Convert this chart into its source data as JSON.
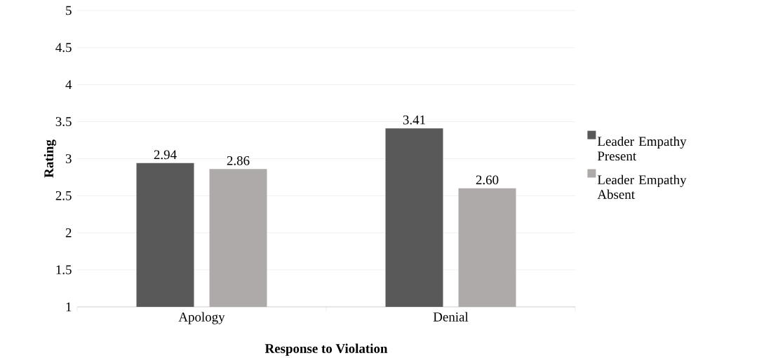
{
  "chart_data": {
    "type": "bar",
    "xlabel": "Response to Violation",
    "ylabel": "Rating",
    "categories": [
      "Apology",
      "Denial"
    ],
    "series": [
      {
        "name": "Leader Empathy Present",
        "color": "#595959",
        "values": [
          2.94,
          3.41
        ],
        "value_labels": [
          "2.94",
          "3.41"
        ]
      },
      {
        "name": "Leader Empathy Absent",
        "color": "#aeaaaa",
        "values": [
          2.86,
          2.6
        ],
        "value_labels": [
          "2.86",
          "2.60"
        ]
      }
    ],
    "ylim": [
      1,
      5
    ],
    "yticks": [
      1,
      1.5,
      2,
      2.5,
      3,
      3.5,
      4,
      4.5,
      5
    ],
    "grid": "y",
    "legend": "right"
  }
}
